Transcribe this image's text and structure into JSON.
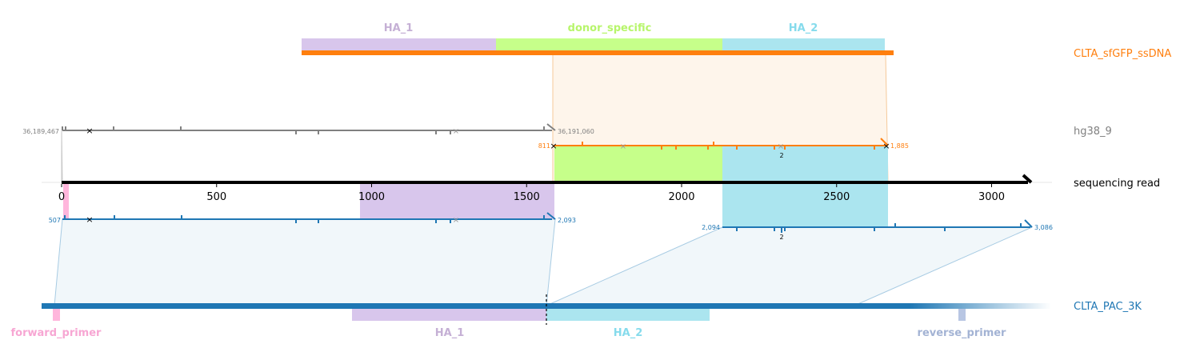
{
  "colors": {
    "orange": "#ff7f0e",
    "blue": "#1f77b4",
    "gray": "#808080",
    "black": "#000000",
    "ha1": "#d8c6ec",
    "ha1_text": "#c5b0d5",
    "donor": "#c6ff8a",
    "donor_text": "#b7f56b",
    "ha2": "#abe5ef",
    "ha2_text": "#86dbec",
    "fwd": "#ffb6dc",
    "fwd_text": "#f7a6d3",
    "rev": "#b8c6e3",
    "rev_text": "#a3b3d4"
  },
  "right_labels": {
    "donor": "CLTA_sfGFP_ssDNA",
    "genome": "hg38_9",
    "read": "sequencing read",
    "amplicon": "CLTA_PAC_3K"
  },
  "top_features": [
    {
      "label": "HA_1",
      "color_key": "ha1",
      "text_key": "ha1_text"
    },
    {
      "label": "donor_specific",
      "color_key": "donor",
      "text_key": "donor_text"
    },
    {
      "label": "HA_2",
      "color_key": "ha2",
      "text_key": "ha2_text"
    }
  ],
  "bottom_features": [
    {
      "label": "forward_primer",
      "color_key": "fwd",
      "text_key": "fwd_text"
    },
    {
      "label": "HA_1",
      "color_key": "ha1",
      "text_key": "ha1_text"
    },
    {
      "label": "HA_2",
      "color_key": "ha2",
      "text_key": "ha2_text"
    },
    {
      "label": "reverse_primer",
      "color_key": "rev",
      "text_key": "rev_text"
    }
  ],
  "read_axis": {
    "ticks": [
      0,
      500,
      1000,
      1500,
      2000,
      2500,
      3000
    ],
    "tick_labels": [
      "0",
      "500",
      "1000",
      "1500",
      "2000",
      "2500",
      "3000"
    ],
    "max": 3140
  },
  "read_bands": [
    {
      "feature": "forward_primer",
      "start": 5,
      "end": 22
    },
    {
      "feature": "HA_1",
      "start": 963,
      "end": 1590
    },
    {
      "feature": "donor_specific",
      "start": 1590,
      "end": 2135
    },
    {
      "feature": "HA_2",
      "start": 2135,
      "end": 2670
    }
  ],
  "alignments": {
    "genome": {
      "start_label": "36,189,467",
      "end_label": "36,191,060"
    },
    "donor": {
      "start_label": "811",
      "end_label": "1,885",
      "marker_label": "2"
    },
    "amplicon_1": {
      "start_label": "507",
      "end_label": "2,093"
    },
    "amplicon_2": {
      "start_label": "2,094",
      "end_label": "3,086",
      "marker_label": "2"
    }
  }
}
